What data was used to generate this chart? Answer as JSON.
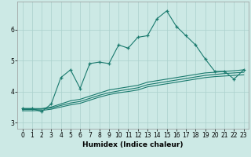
{
  "title": "",
  "xlabel": "Humidex (Indice chaleur)",
  "ylabel": "",
  "x_values": [
    0,
    1,
    2,
    3,
    4,
    5,
    6,
    7,
    8,
    9,
    10,
    11,
    12,
    13,
    14,
    15,
    16,
    17,
    18,
    19,
    20,
    21,
    22,
    23
  ],
  "main_line": [
    3.45,
    3.45,
    3.35,
    3.6,
    4.45,
    4.7,
    4.1,
    4.9,
    4.95,
    4.9,
    5.5,
    5.4,
    5.75,
    5.8,
    6.35,
    6.6,
    6.1,
    5.8,
    5.5,
    5.05,
    4.65,
    4.65,
    4.4,
    4.7
  ],
  "smooth_line1": [
    3.45,
    3.45,
    3.45,
    3.5,
    3.6,
    3.7,
    3.75,
    3.85,
    3.95,
    4.05,
    4.1,
    4.15,
    4.2,
    4.3,
    4.35,
    4.4,
    4.45,
    4.5,
    4.55,
    4.6,
    4.62,
    4.65,
    4.67,
    4.7
  ],
  "smooth_line2": [
    3.42,
    3.42,
    3.43,
    3.47,
    3.55,
    3.63,
    3.68,
    3.78,
    3.88,
    3.96,
    4.02,
    4.07,
    4.12,
    4.22,
    4.27,
    4.32,
    4.37,
    4.42,
    4.47,
    4.52,
    4.55,
    4.58,
    4.6,
    4.62
  ],
  "smooth_line3": [
    3.38,
    3.38,
    3.39,
    3.43,
    3.5,
    3.57,
    3.62,
    3.72,
    3.82,
    3.9,
    3.96,
    4.0,
    4.05,
    4.15,
    4.2,
    4.25,
    4.3,
    4.35,
    4.4,
    4.45,
    4.48,
    4.5,
    4.52,
    4.54
  ],
  "bg_color": "#cce9e5",
  "grid_color": "#aad0cc",
  "line_color": "#1a7a6e",
  "ylim": [
    2.8,
    6.9
  ],
  "xlim": [
    -0.5,
    23.5
  ],
  "yticks": [
    3,
    4,
    5,
    6
  ],
  "xticks": [
    0,
    1,
    2,
    3,
    4,
    5,
    6,
    7,
    8,
    9,
    10,
    11,
    12,
    13,
    14,
    15,
    16,
    17,
    18,
    19,
    20,
    21,
    22,
    23
  ],
  "label_fontsize": 6.5,
  "tick_fontsize": 5.5
}
